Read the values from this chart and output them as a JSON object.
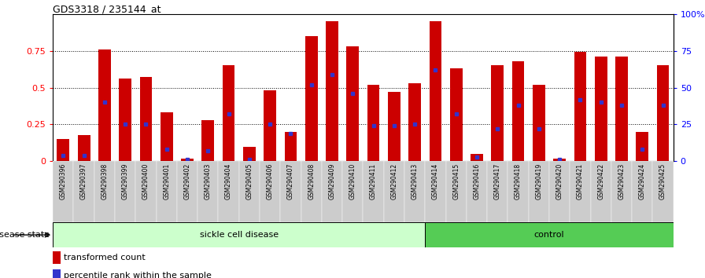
{
  "title": "GDS3318 / 235144_at",
  "categories": [
    "GSM290396",
    "GSM290397",
    "GSM290398",
    "GSM290399",
    "GSM290400",
    "GSM290401",
    "GSM290402",
    "GSM290403",
    "GSM290404",
    "GSM290405",
    "GSM290406",
    "GSM290407",
    "GSM290408",
    "GSM290409",
    "GSM290410",
    "GSM290411",
    "GSM290412",
    "GSM290413",
    "GSM290414",
    "GSM290415",
    "GSM290416",
    "GSM290417",
    "GSM290418",
    "GSM290419",
    "GSM290420",
    "GSM290421",
    "GSM290422",
    "GSM290423",
    "GSM290424",
    "GSM290425"
  ],
  "red_values": [
    0.15,
    0.18,
    0.76,
    0.56,
    0.57,
    0.33,
    0.02,
    0.28,
    0.65,
    0.1,
    0.48,
    0.2,
    0.85,
    0.95,
    0.78,
    0.52,
    0.47,
    0.53,
    0.95,
    0.63,
    0.05,
    0.65,
    0.68,
    0.52,
    0.02,
    0.74,
    0.71,
    0.71,
    0.2,
    0.65
  ],
  "blue_values": [
    0.04,
    0.04,
    0.4,
    0.25,
    0.25,
    0.08,
    0.01,
    0.07,
    0.32,
    0.01,
    0.25,
    0.19,
    0.52,
    0.59,
    0.46,
    0.24,
    0.24,
    0.25,
    0.62,
    0.32,
    0.03,
    0.22,
    0.38,
    0.22,
    0.01,
    0.42,
    0.4,
    0.38,
    0.08,
    0.38
  ],
  "sickle_count": 18,
  "control_count": 12,
  "sickle_label": "sickle cell disease",
  "control_label": "control",
  "disease_state_label": "disease state",
  "legend_red": "transformed count",
  "legend_blue": "percentile rank within the sample",
  "left_yticks": [
    0,
    0.25,
    0.5,
    0.75
  ],
  "right_ytick_labels": [
    "0",
    "25",
    "50",
    "75",
    "100%"
  ],
  "right_ytick_vals": [
    0.0,
    0.25,
    0.5,
    0.75,
    1.0
  ],
  "bar_color_red": "#CC0000",
  "bar_color_blue": "#3333CC",
  "sickle_bg": "#CCFFCC",
  "control_bg": "#55CC55",
  "xticklabel_bg": "#CCCCCC"
}
